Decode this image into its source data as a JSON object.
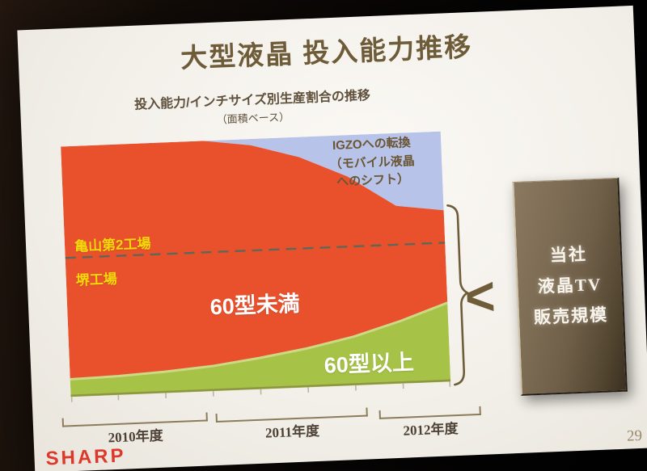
{
  "slide": {
    "title": "大型液晶 投入能力推移",
    "subtitle": "投入能力/インチサイズ別生産割合の推移",
    "subtitle_note": "（面積ベース）"
  },
  "chart": {
    "igzo_label_line1": "IGZOへの転換",
    "igzo_label_line2": "（モバイル液晶",
    "igzo_label_line3": "へのシフト）",
    "kameyama_label": "亀山第2工場",
    "sakai_label": "堺工場",
    "under60_label": "60型未満",
    "over60_label": "60型以上",
    "colors": {
      "under60": "#e9512d",
      "over60": "#a6c247",
      "over60_edge": "#cdd985",
      "over60_base": "#8e9643",
      "igzo": "#b7c3e8",
      "dashed": "#5f6757",
      "tick": "#bdb3a2"
    }
  },
  "comparison": {
    "lt_symbol": "<",
    "box_line1": "当社",
    "box_line2": "液晶TV",
    "box_line3": "販売規模"
  },
  "axis": {
    "years": [
      "2010年度",
      "2011年度",
      "2012年度"
    ]
  },
  "footer": {
    "logo": "SHARP",
    "page": "29"
  },
  "chart_data": {
    "type": "area",
    "title": "投入能力/インチサイズ別生産割合の推移（面積ベース）",
    "subtitle": "大型液晶 投入能力推移",
    "x_labels": [
      "2010年度",
      "2011年度",
      "2012年度"
    ],
    "x_index": [
      0,
      1,
      2,
      3,
      4,
      5,
      6,
      7,
      8
    ],
    "x_note": "9 interpolation points spanning FY2010–FY2012, share of total input capacity (area basis), stacked to 100%",
    "series": [
      {
        "name": "60型以上",
        "values_pct": [
          7,
          7.5,
          8.5,
          10,
          12.5,
          15.5,
          19.5,
          25,
          31.5
        ]
      },
      {
        "name": "60型未満",
        "values_pct": [
          93,
          92.5,
          91.5,
          90,
          85,
          76.5,
          64,
          46,
          37
        ]
      },
      {
        "name": "IGZOへの転換（モバイル液晶へのシフト）",
        "values_pct": [
          0,
          0,
          0,
          0,
          2.5,
          8,
          16.5,
          29,
          31.5
        ]
      }
    ],
    "stacked_total_pct": 100,
    "legend_position": "in-plot labels",
    "grid": false,
    "annotations": {
      "dashed_line_pct_from_top": 44.5,
      "above_dashed_label": "亀山第2工場",
      "below_dashed_label": "堺工場",
      "comparison_note": "braced chart area < 当社 液晶TV 販売規模"
    }
  }
}
